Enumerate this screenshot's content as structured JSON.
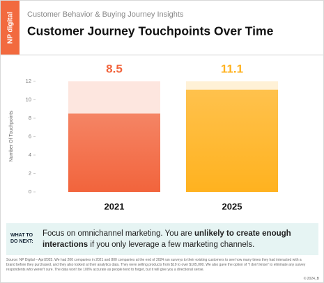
{
  "logo": "NP digital",
  "chart_data": {
    "type": "bar",
    "subtitle": "Customer Behavior & Buying Journey Insights",
    "title": "Customer Journey Touchpoints Over Time",
    "y_label": "Number Of Touchpoints",
    "categories": [
      "2021",
      "2025"
    ],
    "values": [
      8.5,
      11.1
    ],
    "colors": [
      "#f2643c",
      "#ffb21f"
    ],
    "background_colors": [
      "#fde6df",
      "#fff1d6"
    ],
    "ylim": [
      0,
      12
    ],
    "yticks": [
      0,
      2,
      4,
      6,
      8,
      10,
      12
    ]
  },
  "takeaway": {
    "label": "WHAT TO DO NEXT:",
    "text_start": "Focus on omnichannel marketing. You are ",
    "text_bold": "unlikely to create enough interactions",
    "text_end": " if you only leverage a few marketing channels."
  },
  "source": "Source: NP Digital – Apr/2025. We had 200 companies in 2021 and 800 companies at the end of 2024 run surveys to their existing customers to see how many times they had interacted with a brand before they purchased, and they also looked at their analytics data. They were selling products from $19 to over $105,000. We also gave the option of \"I don't know\" to eliminate any survey respondents who weren't sure. The data won't be 100% accurate as people tend to forget, but it will give you a directional sense.",
  "copyright": "© 2024_B"
}
